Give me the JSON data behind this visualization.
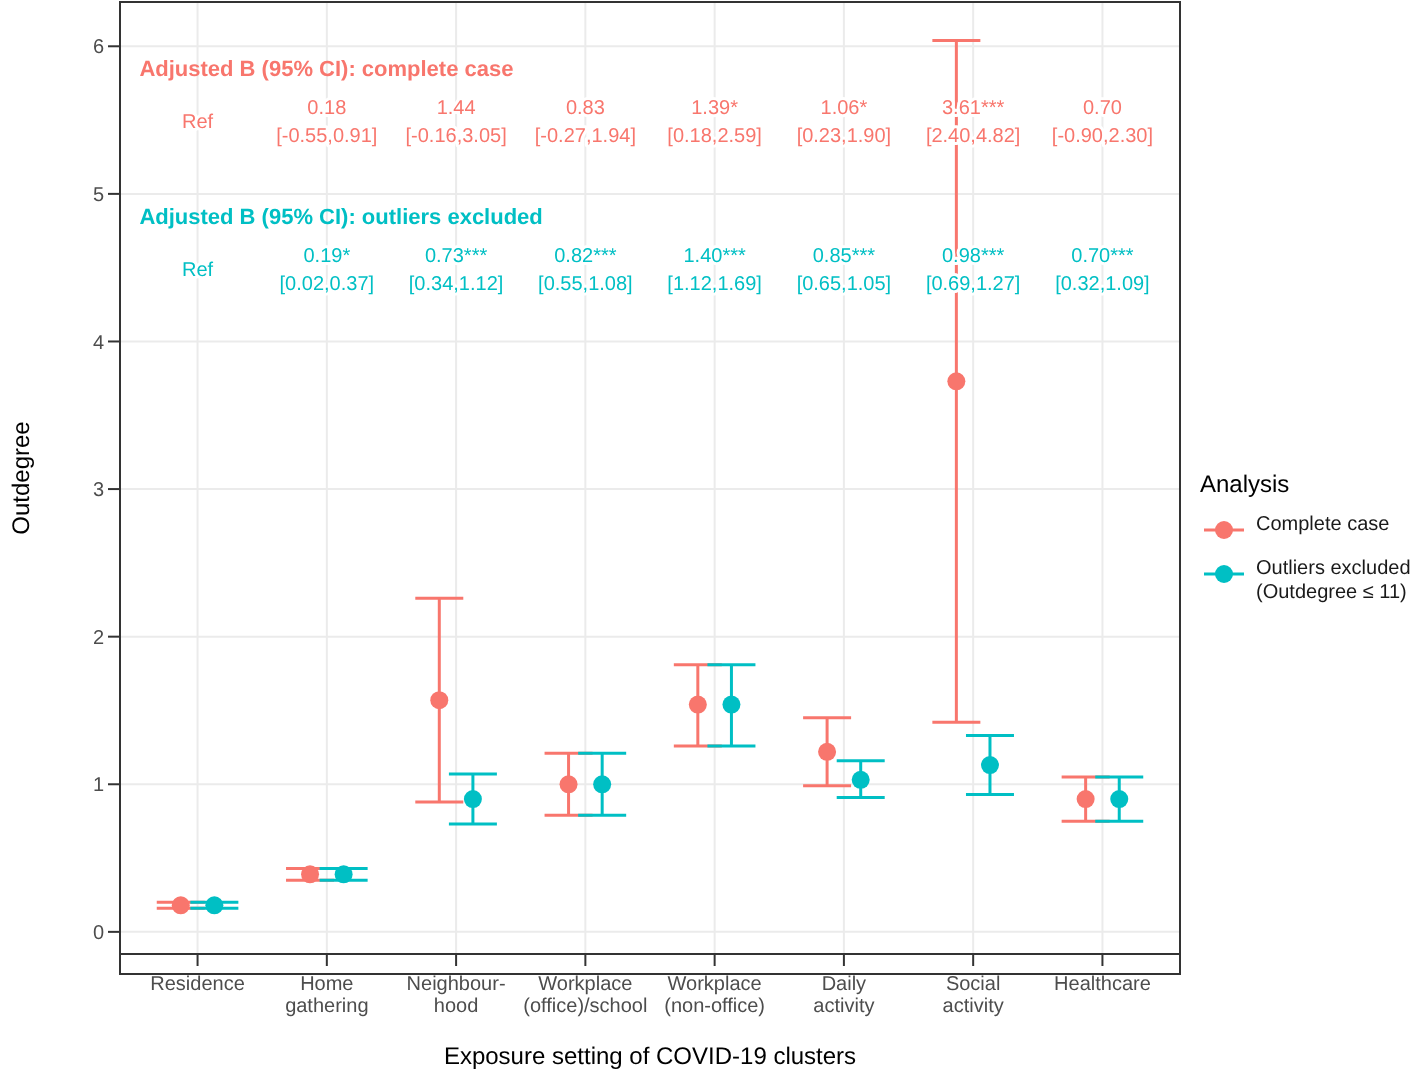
{
  "chart_data": {
    "type": "scatter",
    "xlabel": "Exposure setting of COVID-19 clusters",
    "ylabel": "Outdegree",
    "legend_title": "Analysis",
    "legend": "right",
    "grid": true,
    "marker": "circle",
    "categories": [
      "Residence",
      "Home\ngathering",
      "Neighbour-\nhood",
      "Workplace\n(office)/school",
      "Workplace\n(non-office)",
      "Daily\nactivity",
      "Social\nactivity",
      "Healthcare"
    ],
    "ylim": [
      -0.15,
      6.3
    ],
    "yticks": [
      0,
      1,
      2,
      3,
      4,
      5,
      6
    ],
    "series": [
      {
        "name": "Complete case",
        "color": "#f8766d",
        "values": [
          0.18,
          0.39,
          1.57,
          1.0,
          1.54,
          1.22,
          3.73,
          0.9
        ],
        "errors": [
          [
            0.16,
            0.2
          ],
          [
            0.35,
            0.43
          ],
          [
            0.88,
            2.26
          ],
          [
            0.79,
            1.21
          ],
          [
            1.26,
            1.81
          ],
          [
            0.99,
            1.45
          ],
          [
            1.42,
            6.04
          ],
          [
            0.75,
            1.05
          ]
        ]
      },
      {
        "name": "Outliers excluded\n(Outdegree ≤ 11)",
        "color": "#00bfc4",
        "values": [
          0.18,
          0.39,
          0.9,
          1.0,
          1.54,
          1.03,
          1.13,
          0.9
        ],
        "errors": [
          [
            0.16,
            0.2
          ],
          [
            0.35,
            0.43
          ],
          [
            0.73,
            1.07
          ],
          [
            0.79,
            1.21
          ],
          [
            1.26,
            1.81
          ],
          [
            0.91,
            1.16
          ],
          [
            0.93,
            1.33
          ],
          [
            0.75,
            1.05
          ]
        ]
      }
    ],
    "annotations": [
      "Adjusted B (95% CI): complete case",
      "Ref",
      "0.18\n[-0.55,0.91]",
      "1.44\n[-0.16,3.05]",
      "0.83\n[-0.27,1.94]",
      "1.39*\n[0.18,2.59]",
      "1.06*\n[0.23,1.90]",
      "3.61***\n[2.40,4.82]",
      "0.70\n[-0.90,2.30]",
      "Adjusted B (95% CI): outliers excluded",
      "Ref",
      "0.19*\n[0.02,0.37]",
      "0.73***\n[0.34,1.12]",
      "0.82***\n[0.55,1.08]",
      "1.40***\n[1.12,1.69]",
      "0.85***\n[0.65,1.05]",
      "0.98***\n[0.69,1.27]",
      "0.70***\n[0.32,1.09]"
    ]
  }
}
